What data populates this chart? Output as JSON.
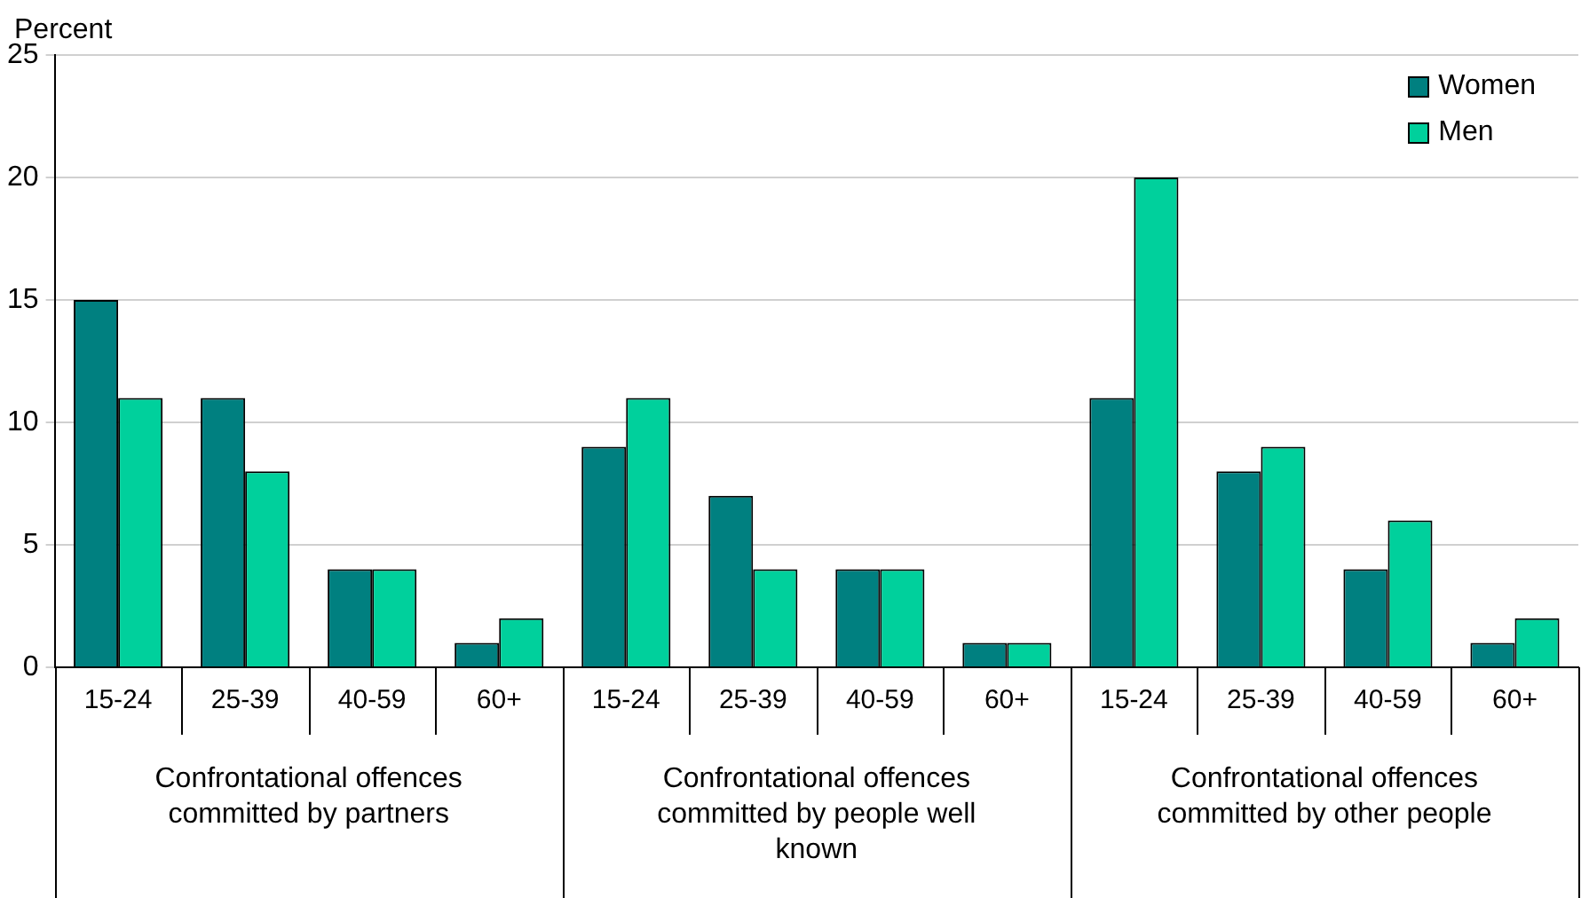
{
  "chart_data": {
    "type": "bar",
    "ylabel": "Percent",
    "categories": [
      "15-24",
      "25-39",
      "40-59",
      "60+",
      "15-24",
      "25-39",
      "40-59",
      "60+",
      "15-24",
      "25-39",
      "40-59",
      "60+"
    ],
    "series": [
      {
        "name": "Women",
        "color": "#008080",
        "values": [
          15,
          11,
          4,
          1,
          9,
          7,
          4,
          1,
          11,
          8,
          4,
          1
        ]
      },
      {
        "name": "Men",
        "color": "#00d09c",
        "values": [
          11,
          8,
          4,
          2,
          11,
          4,
          4,
          1,
          20,
          9,
          6,
          2
        ]
      }
    ],
    "annotations": [
      "Confrontational offences committed by partners",
      "Confrontational offences committed by people well known",
      "Confrontational offences committed by other people"
    ],
    "ylim": [
      0,
      25
    ],
    "yticks": [
      0,
      5,
      10,
      15,
      20,
      25
    ],
    "grid": "y",
    "legend": "top right"
  }
}
